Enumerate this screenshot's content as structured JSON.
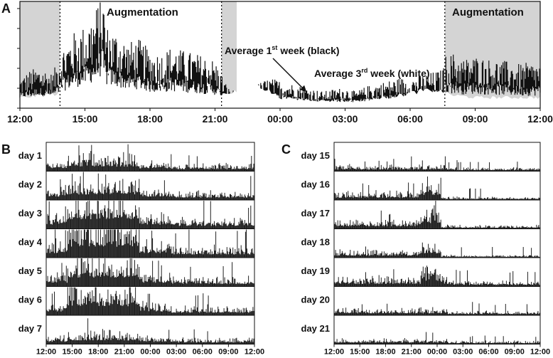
{
  "chart_data": [
    {
      "panel": "A",
      "type": "area",
      "annotations": {
        "left_period": "Augmentation",
        "right_period": "Augmentation",
        "black_series": "Average 1",
        "black_sup": "st",
        "black_rest": " week (black)",
        "white_series": "Average 3",
        "white_sup": "rd",
        "white_rest": " week (white)"
      },
      "x_ticks": [
        "12:00",
        "15:00",
        "18:00",
        "21:00",
        "00:00",
        "03:00",
        "06:00",
        "09:00",
        "12:00"
      ],
      "x_range_hours": [
        12,
        36
      ],
      "shaded_periods_hours": [
        [
          12,
          13.85
        ],
        [
          21.3,
          22.0
        ],
        [
          31.6,
          36
        ]
      ],
      "dotted_lines_hours": [
        13.85,
        21.3,
        31.6
      ],
      "y_range": [
        0,
        1
      ],
      "y_ticks": 6,
      "series": [
        {
          "name": "Average 1st week (black)",
          "color": "#111111",
          "x": [
            12,
            12.5,
            13,
            13.5,
            14,
            14.5,
            15,
            15.5,
            15.8,
            16,
            16.5,
            17,
            17.5,
            18,
            18.5,
            19,
            19.5,
            20,
            20.5,
            21,
            21.3,
            21.6,
            22,
            22.5,
            23,
            23.5,
            24,
            24.5,
            25,
            25.5,
            26,
            26.5,
            27,
            27.5,
            28,
            28.5,
            29,
            29.5,
            30,
            30.5,
            31,
            31.5,
            31.6,
            32,
            32.5,
            33,
            33.5,
            34,
            34.5,
            35,
            35.5,
            36
          ],
          "values": [
            0.22,
            0.28,
            0.3,
            0.25,
            0.45,
            0.55,
            0.6,
            0.72,
            0.88,
            0.6,
            0.55,
            0.48,
            0.5,
            0.42,
            0.4,
            0.45,
            0.42,
            0.4,
            0.38,
            0.35,
            0.25,
            0.15,
            0.12,
            0.1,
            0.18,
            0.22,
            0.2,
            0.18,
            0.16,
            0.14,
            0.12,
            0.14,
            0.15,
            0.12,
            0.16,
            0.18,
            0.2,
            0.22,
            0.22,
            0.24,
            0.26,
            0.28,
            0.38,
            0.4,
            0.36,
            0.38,
            0.36,
            0.35,
            0.34,
            0.32,
            0.33,
            0.33
          ]
        },
        {
          "name": "Average 3rd week (white)",
          "color": "#ffffff",
          "x": [
            12,
            13,
            14,
            15,
            16,
            17,
            18,
            19,
            20,
            21,
            22,
            23,
            24,
            25,
            26,
            27,
            28,
            29,
            30,
            31,
            32,
            33,
            34,
            35,
            36
          ],
          "values": [
            0.1,
            0.12,
            0.14,
            0.15,
            0.16,
            0.18,
            0.16,
            0.14,
            0.12,
            0.12,
            0.16,
            0.22,
            0.1,
            0.08,
            0.07,
            0.06,
            0.07,
            0.1,
            0.14,
            0.18,
            0.12,
            0.1,
            0.1,
            0.1,
            0.1
          ]
        }
      ]
    },
    {
      "panel": "B",
      "type": "bar",
      "rows": [
        "day 1",
        "day 2",
        "day 3",
        "day 4",
        "day 5",
        "day 6",
        "day 7"
      ],
      "activity_level": [
        1.0,
        1.2,
        1.4,
        1.6,
        1.3,
        1.3,
        0.8
      ],
      "x_ticks": [
        "12:00",
        "15:00",
        "18:00",
        "21:00",
        "00:00",
        "03:00",
        "06:00",
        "09:00",
        "12:00"
      ]
    },
    {
      "panel": "C",
      "type": "bar",
      "rows": [
        "day 15",
        "day 16",
        "day 17",
        "day 18",
        "day 19",
        "day 20",
        "day 21"
      ],
      "activity_level": [
        0.6,
        0.8,
        0.9,
        0.7,
        0.9,
        0.7,
        0.5
      ],
      "x_ticks": [
        "12:00",
        "15:00",
        "18:00",
        "21:00",
        "00:00",
        "03:00",
        "06:00",
        "09:00",
        "12:00"
      ]
    }
  ],
  "panel_labels": {
    "a": "A",
    "b": "B",
    "c": "C"
  }
}
